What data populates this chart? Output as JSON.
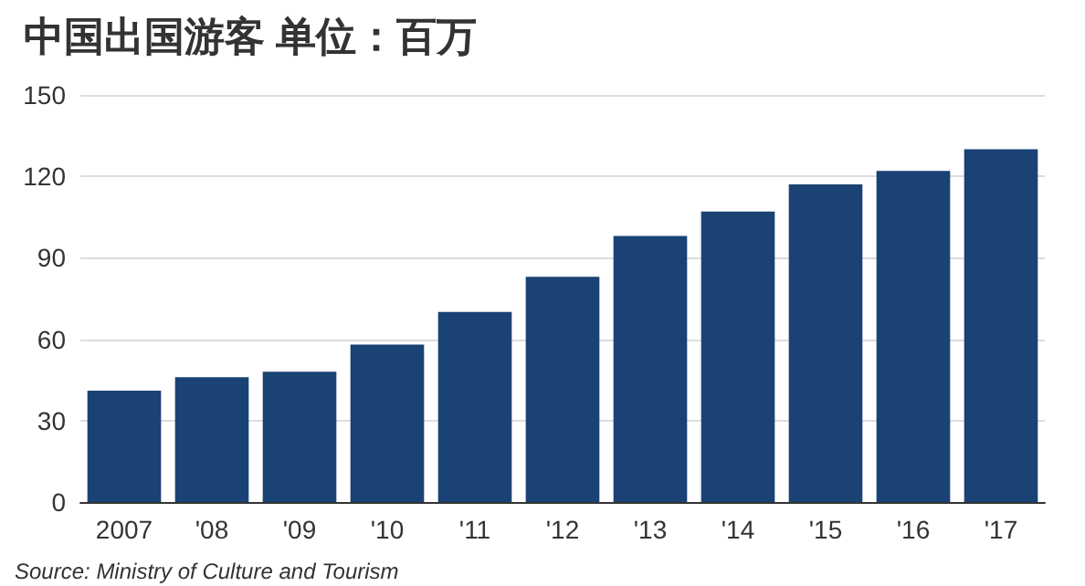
{
  "chart_data": {
    "type": "bar",
    "title": "中国出国游客 单位：百万",
    "categories": [
      "2007",
      "'08",
      "'09",
      "'10",
      "'11",
      "'12",
      "'13",
      "'14",
      "'15",
      "'16",
      "'17"
    ],
    "values": [
      41,
      46,
      48,
      58,
      70,
      83,
      98,
      107,
      117,
      122,
      130
    ],
    "color": "#1a4274",
    "ylim": [
      0,
      150
    ],
    "yticks": [
      0,
      30,
      60,
      90,
      120,
      150
    ],
    "grid": "y",
    "annotations": [
      "Source: Ministry of Culture and Tourism"
    ]
  }
}
